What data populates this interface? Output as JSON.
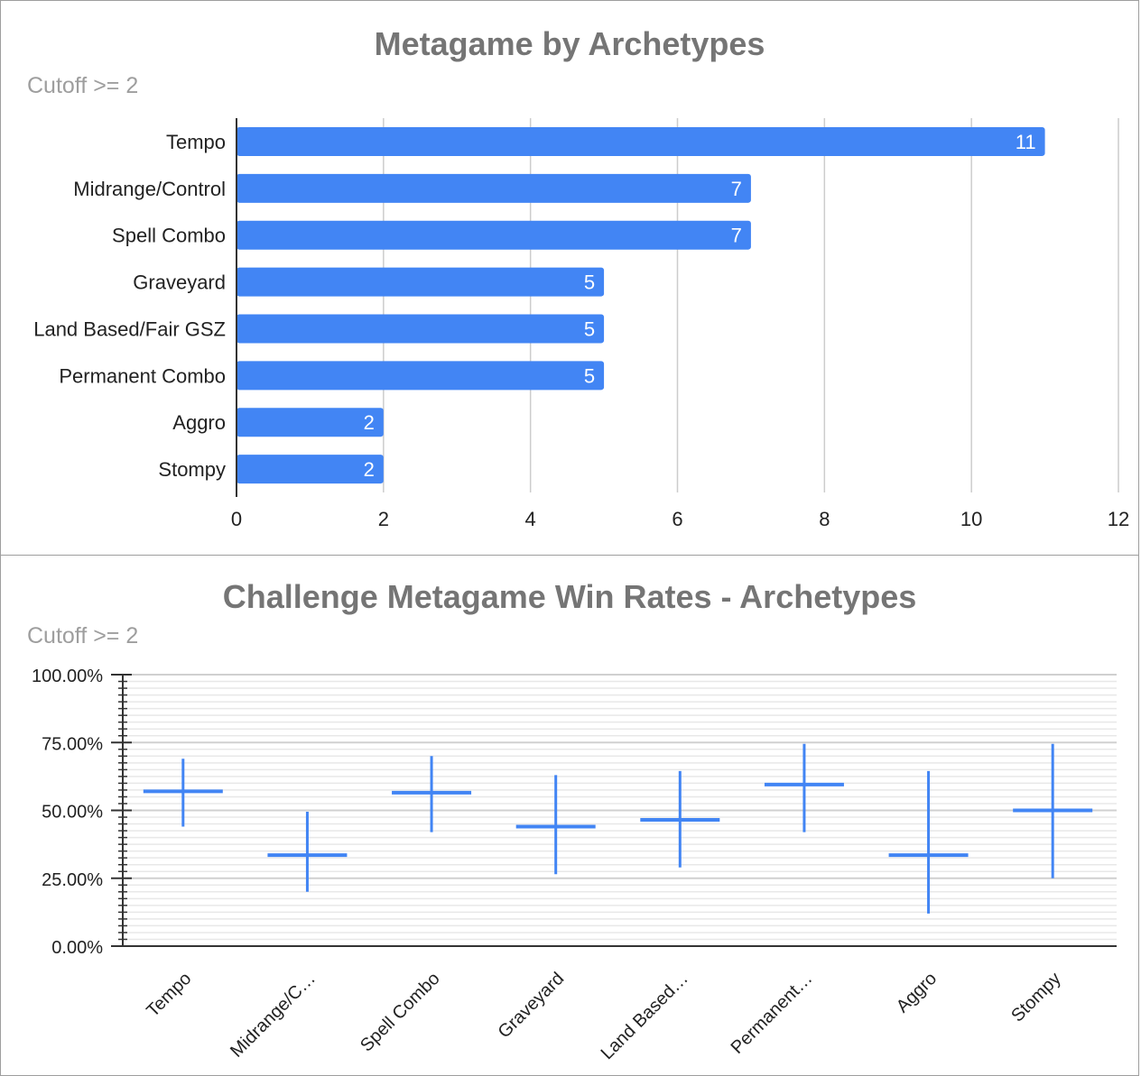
{
  "chart_data": [
    {
      "type": "bar",
      "orientation": "horizontal",
      "title": "Metagame by Archetypes",
      "subtitle": "Cutoff >= 2",
      "categories": [
        "Tempo",
        "Midrange/Control",
        "Spell Combo",
        "Graveyard",
        "Land Based/Fair GSZ",
        "Permanent Combo",
        "Aggro",
        "Stompy"
      ],
      "values": [
        11,
        7,
        7,
        5,
        5,
        5,
        2,
        2
      ],
      "xlim": [
        0,
        12
      ],
      "x_ticks": [
        "0",
        "2",
        "4",
        "6",
        "8",
        "10",
        "12"
      ],
      "xlabel": "",
      "ylabel": "",
      "grid": true,
      "bar_color": "#4285f4"
    },
    {
      "type": "error-bar",
      "title": "Challenge Metagame Win Rates - Archetypes",
      "subtitle": "Cutoff >= 2",
      "categories": [
        "Tempo",
        "Midrange/C…",
        "Spell Combo",
        "Graveyard",
        "Land Based…",
        "Permanent…",
        "Aggro",
        "Stompy"
      ],
      "series": [
        {
          "mean": [
            57,
            33.5,
            56.5,
            44,
            46.5,
            59.5,
            33.5,
            50
          ],
          "low": [
            44,
            20,
            42,
            26.5,
            29,
            42,
            12,
            25
          ],
          "high": [
            69,
            49.5,
            70,
            63,
            64.5,
            74.5,
            64.5,
            74.5
          ]
        }
      ],
      "ylim": [
        0,
        100
      ],
      "y_ticks": [
        "0.00%",
        "25.00%",
        "50.00%",
        "75.00%",
        "100.00%"
      ],
      "xlabel": "",
      "ylabel": "",
      "grid": true,
      "line_color": "#4285f4"
    }
  ]
}
